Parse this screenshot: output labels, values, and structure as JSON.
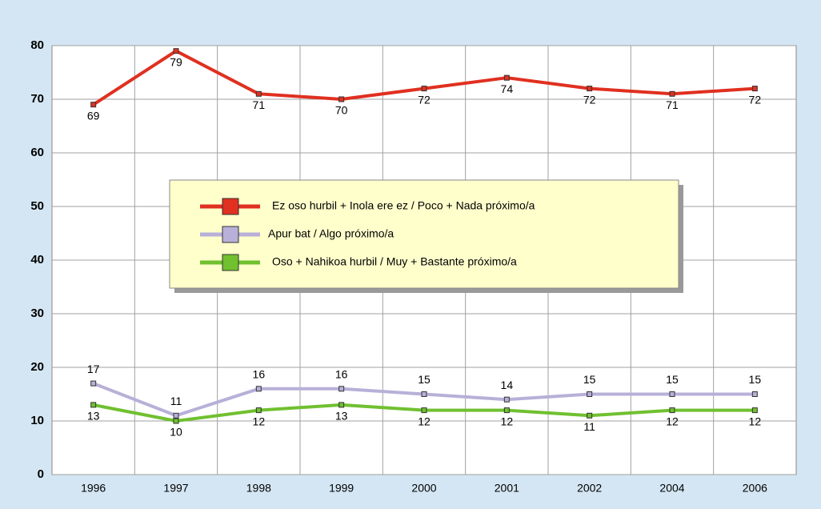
{
  "chart_data": {
    "type": "line",
    "categories": [
      "1996",
      "1997",
      "1998",
      "1999",
      "2000",
      "2001",
      "2002",
      "2004",
      "2006"
    ],
    "series": [
      {
        "name": "Ez oso hurbil + Inola ere ez / Poco + Nada próximo/a",
        "color": "#e03020",
        "values": [
          69,
          79,
          71,
          70,
          72,
          74,
          72,
          71,
          72
        ]
      },
      {
        "name": "Apur bat / Algo próximo/a",
        "color": "#b8b0d8",
        "values": [
          17,
          11,
          16,
          16,
          15,
          14,
          15,
          15,
          15
        ]
      },
      {
        "name": "Oso + Nahikoa hurbil / Muy + Bastante próximo/a",
        "color": "#70c030",
        "values": [
          13,
          10,
          12,
          13,
          12,
          12,
          11,
          12,
          12
        ]
      }
    ],
    "ylim": [
      0,
      80
    ],
    "yticks": [
      0,
      10,
      20,
      30,
      40,
      50,
      60,
      70,
      80
    ],
    "grid": true
  }
}
